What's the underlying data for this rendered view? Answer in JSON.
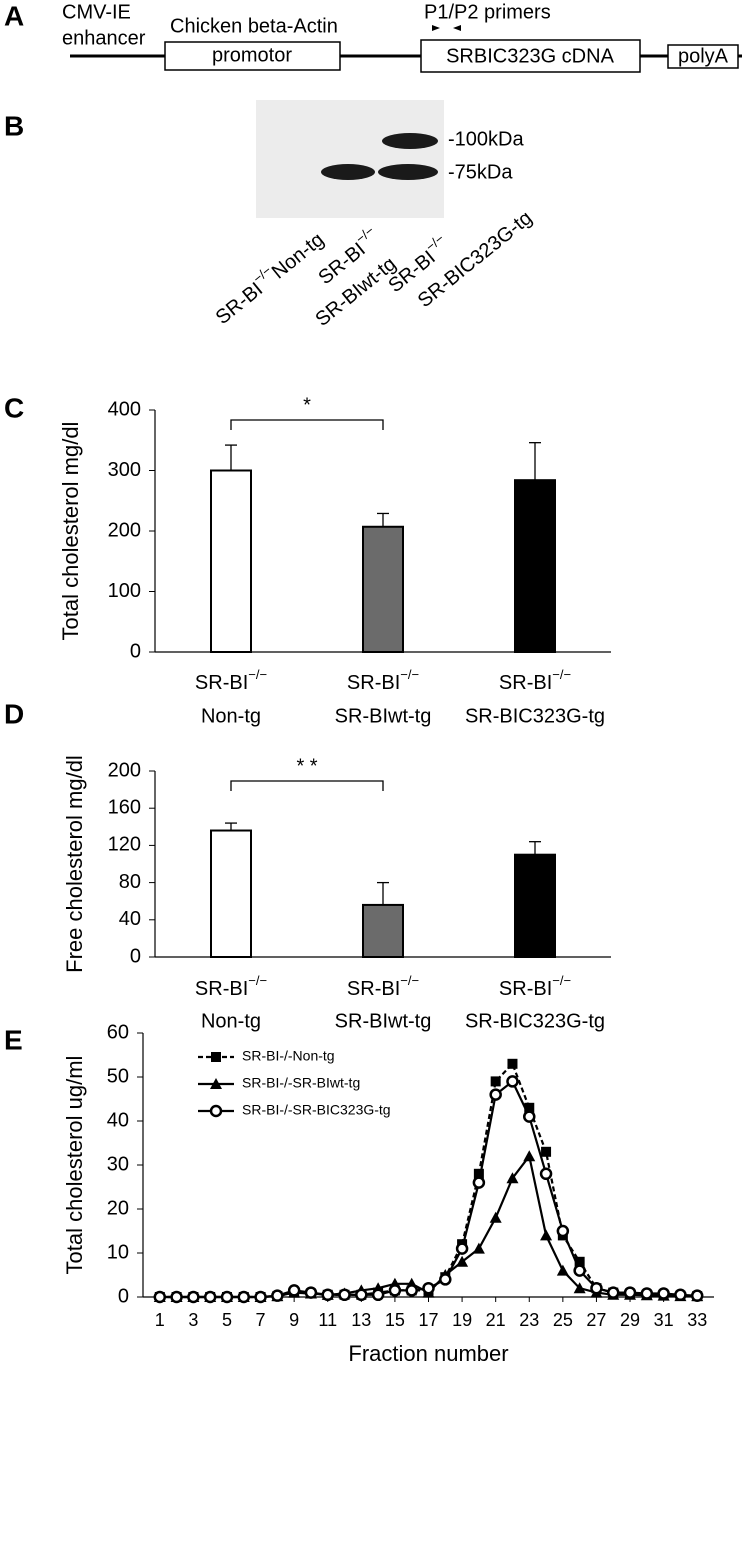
{
  "panel_labels": [
    "A",
    "B",
    "C",
    "D",
    "E"
  ],
  "construct": {
    "enhancer": [
      "CMV-IE",
      "enhancer"
    ],
    "promoter_title": "Chicken beta-Actin",
    "promoter_box": "promotor",
    "primers": "P1/P2 primers",
    "cdna": "SRBIC323G cDNA",
    "polya": "polyA"
  },
  "blot": {
    "bands": [
      "-100kDa",
      "-75kDa"
    ],
    "lanes": [
      [
        "SR-BI",
        "−/−",
        "Non-tg"
      ],
      [
        "SR-BI",
        "−/−",
        "SR-BIwt-tg"
      ],
      [
        "SR-BI",
        "−/−",
        "SR-BIC323G-tg"
      ]
    ]
  },
  "chart_data": [
    {
      "type": "bar",
      "y_label": "Total cholesterol mg/dl",
      "categories": [
        [
          "SR-BI",
          "−/−",
          "Non-tg"
        ],
        [
          "SR-BI",
          "−/−",
          "SR-BIwt-tg"
        ],
        [
          "SR-BI",
          "−/−",
          "SR-BIC323G-tg"
        ]
      ],
      "values": [
        300,
        207,
        284
      ],
      "errors": [
        42,
        22,
        62
      ],
      "colors": [
        "#ffffff",
        "#6b6b6b",
        "#000000"
      ],
      "ylim": [
        0,
        400
      ],
      "yticks": [
        0,
        100,
        200,
        300,
        400
      ],
      "grid": false,
      "significance": "*"
    },
    {
      "type": "bar",
      "y_label": "Free cholesterol mg/dl",
      "categories": [
        [
          "SR-BI",
          "−/−",
          "Non-tg"
        ],
        [
          "SR-BI",
          "−/−",
          "SR-BIwt-tg"
        ],
        [
          "SR-BI",
          "−/−",
          "SR-BIC323G-tg"
        ]
      ],
      "values": [
        136,
        56,
        110
      ],
      "errors": [
        8,
        24,
        14
      ],
      "colors": [
        "#ffffff",
        "#6b6b6b",
        "#000000"
      ],
      "ylim": [
        0,
        200
      ],
      "yticks": [
        0,
        40,
        80,
        120,
        160,
        200
      ],
      "grid": false,
      "significance": "* *"
    },
    {
      "type": "line",
      "y_label": "Total cholesterol ug/ml",
      "x_label": "Fraction number",
      "x": [
        1,
        2,
        3,
        4,
        5,
        6,
        7,
        8,
        9,
        10,
        11,
        12,
        13,
        14,
        15,
        16,
        17,
        18,
        19,
        20,
        21,
        22,
        23,
        24,
        25,
        26,
        27,
        28,
        29,
        30,
        31,
        32,
        33
      ],
      "series": [
        {
          "name": "SR-BI-/-Non-tg",
          "color": "#000000",
          "dash": true,
          "marker": "square",
          "values": [
            0,
            0,
            0,
            0,
            0,
            0,
            0,
            0.2,
            1,
            0.8,
            0.5,
            0.5,
            0.5,
            1,
            1.5,
            1.5,
            1.5,
            4.5,
            12,
            28,
            49,
            53,
            43,
            33,
            14,
            8,
            2,
            1,
            0.8,
            0.5,
            0.5,
            0.3,
            0.2
          ]
        },
        {
          "name": "SR-BI-/-SR-BIwt-tg",
          "color": "#000000",
          "dash": false,
          "marker": "triangle",
          "values": [
            0,
            0,
            0,
            0,
            0,
            0,
            0,
            0.2,
            1,
            0.8,
            0.5,
            0.8,
            1.5,
            2,
            3,
            3,
            1,
            5,
            8,
            11,
            18,
            27,
            32,
            14,
            6,
            2,
            1,
            0.5,
            0.5,
            0.4,
            0.3,
            0.2,
            0.2
          ]
        },
        {
          "name": "SR-BI-/-SR-BIC323G-tg",
          "color": "#000000",
          "dash": false,
          "marker": "circle",
          "values": [
            0,
            0,
            0,
            0,
            0,
            0,
            0,
            0.3,
            1.5,
            1,
            0.5,
            0.5,
            0.5,
            0.5,
            1.5,
            1.5,
            2,
            4,
            11,
            26,
            46,
            49,
            41,
            28,
            15,
            6,
            2,
            1,
            1,
            0.8,
            0.8,
            0.5,
            0.3
          ]
        }
      ],
      "xlim": [
        0,
        34
      ],
      "xticks": [
        1,
        3,
        5,
        7,
        9,
        11,
        13,
        15,
        17,
        19,
        21,
        23,
        25,
        27,
        29,
        31,
        33
      ],
      "ylim": [
        0,
        60
      ],
      "yticks": [
        0,
        10,
        20,
        30,
        40,
        50,
        60
      ],
      "grid": false,
      "legend": "upper left"
    }
  ]
}
